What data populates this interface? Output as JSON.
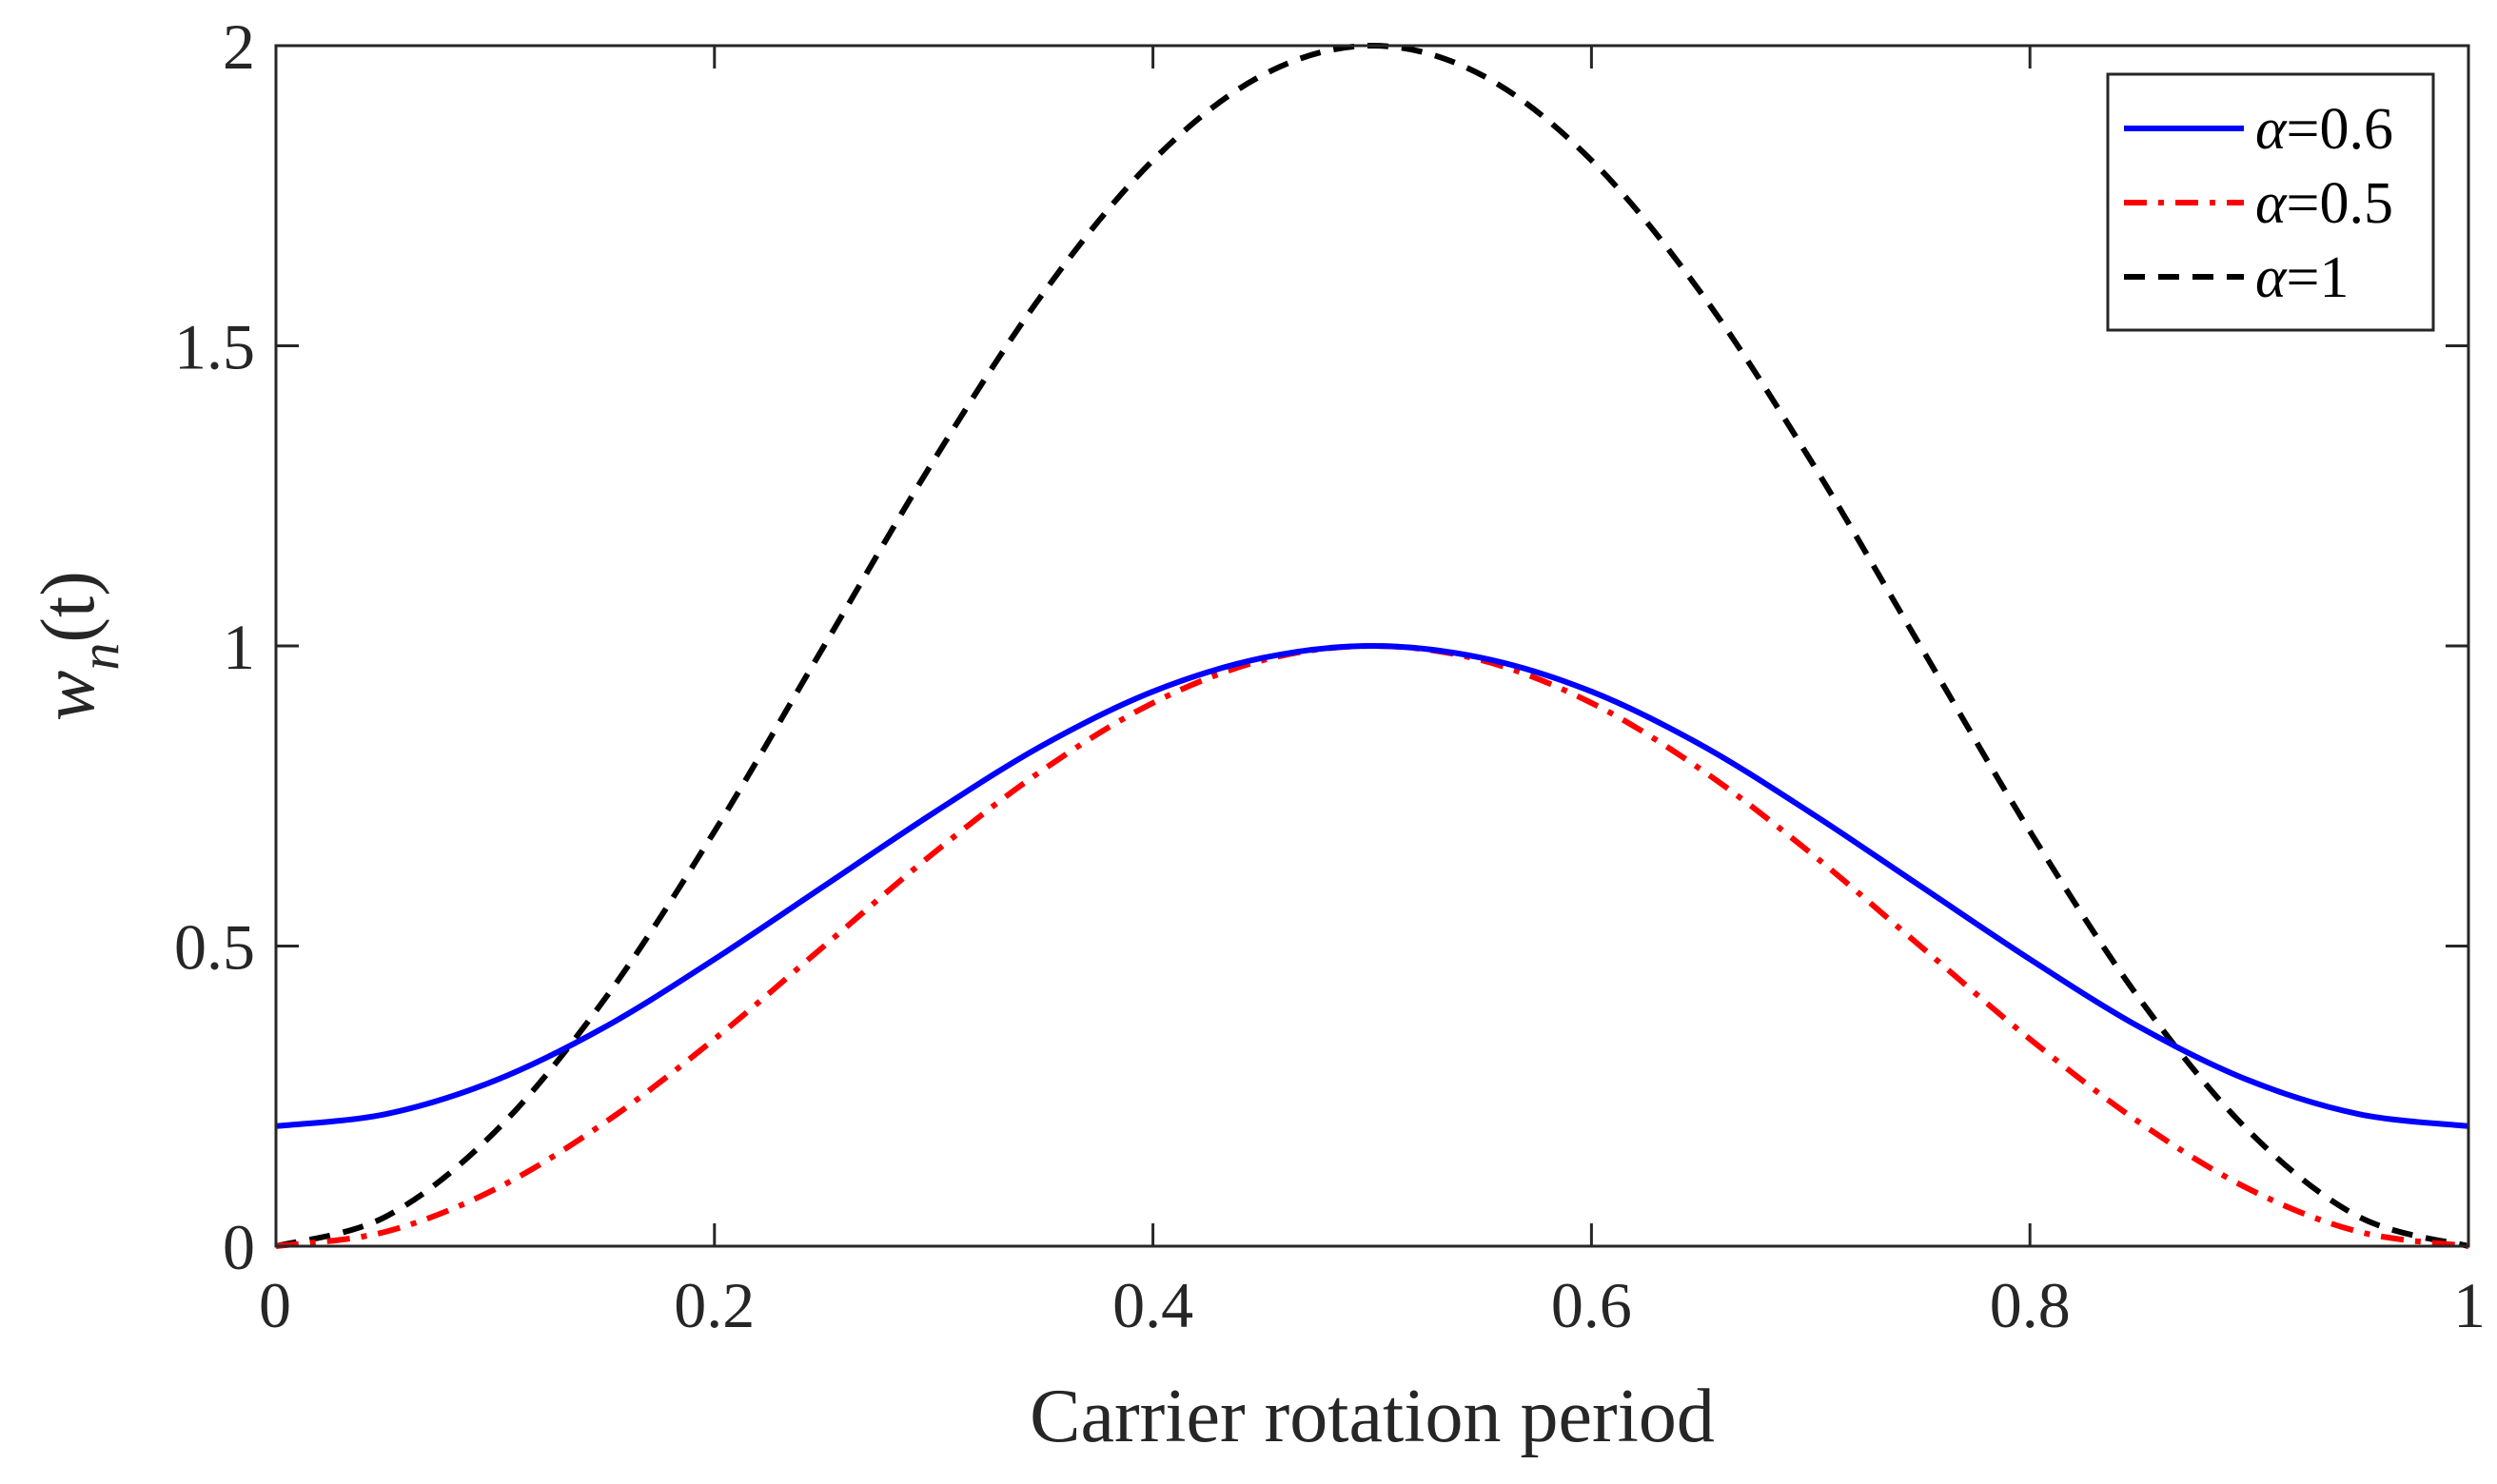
{
  "chart_data": {
    "type": "line",
    "title": "",
    "xlabel": "Carrier rotation period",
    "ylabel": {
      "main": "w",
      "sub": "n",
      "suffix": "(t)"
    },
    "xlim": [
      0,
      1
    ],
    "ylim": [
      0,
      2
    ],
    "xticks": [
      0,
      0.2,
      0.4,
      0.6,
      0.8,
      1
    ],
    "xtick_labels": [
      "0",
      "0.2",
      "0.4",
      "0.6",
      "0.8",
      "1"
    ],
    "yticks": [
      0,
      0.5,
      1,
      1.5,
      2
    ],
    "ytick_labels": [
      "0",
      "0.5",
      "1",
      "1.5",
      "2"
    ],
    "grid": false,
    "legend_position": "top-right",
    "x": [
      0,
      0.05,
      0.1,
      0.15,
      0.2,
      0.25,
      0.3,
      0.35,
      0.4,
      0.45,
      0.5,
      0.55,
      0.6,
      0.65,
      0.7,
      0.75,
      0.8,
      0.85,
      0.9,
      0.95,
      1
    ],
    "series": [
      {
        "name": "α=0.6",
        "symbol": "α",
        "value_text": "=0.6",
        "color": "#0000ff",
        "dash": "solid",
        "values": [
          0.2,
          0.22,
          0.276,
          0.365,
          0.478,
          0.6,
          0.722,
          0.835,
          0.924,
          0.98,
          1.0,
          0.98,
          0.924,
          0.835,
          0.722,
          0.6,
          0.478,
          0.365,
          0.276,
          0.22,
          0.2
        ]
      },
      {
        "name": "α=0.5",
        "symbol": "α",
        "value_text": "=0.5",
        "color": "#ff0000",
        "dash": "dashdot",
        "values": [
          0.0,
          0.024,
          0.095,
          0.206,
          0.345,
          0.5,
          0.655,
          0.794,
          0.905,
          0.976,
          1.0,
          0.976,
          0.905,
          0.794,
          0.655,
          0.5,
          0.345,
          0.206,
          0.095,
          0.024,
          0.0
        ]
      },
      {
        "name": "α=1",
        "symbol": "α",
        "value_text": "=1",
        "color": "#000000",
        "dash": "dashed",
        "values": [
          0.0,
          0.049,
          0.191,
          0.412,
          0.691,
          1.0,
          1.309,
          1.588,
          1.809,
          1.951,
          2.0,
          1.951,
          1.809,
          1.588,
          1.309,
          1.0,
          0.691,
          0.412,
          0.191,
          0.049,
          0.0
        ]
      }
    ]
  }
}
